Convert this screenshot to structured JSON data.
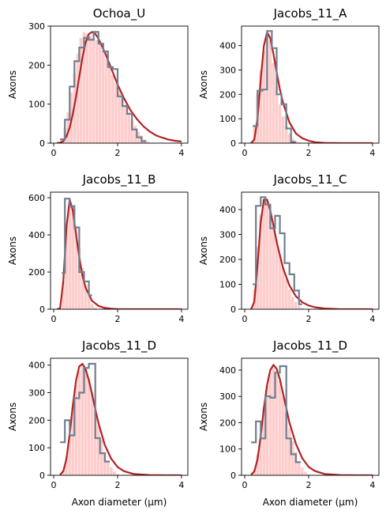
{
  "colors": {
    "fill": "#ffcccc",
    "fill_edge": "#ffffff",
    "fit": "#b22222",
    "step": "#708090",
    "axis": "#000000"
  },
  "chart_data": [
    {
      "type": "area",
      "title": "Ochoa_U",
      "ylabel": "Axons",
      "xlabel": "",
      "xlim": [
        -0.1,
        4.2
      ],
      "ylim": [
        0,
        300
      ],
      "xticks": [
        0,
        2,
        4
      ],
      "yticks": [
        0,
        100,
        200,
        300
      ],
      "grid": false,
      "series": [
        {
          "kind": "fill",
          "x": [
            0.25,
            0.35,
            0.45,
            0.55,
            0.65,
            0.75,
            0.85,
            0.95,
            1.05,
            1.15,
            1.25,
            1.35,
            1.45,
            1.55,
            1.65,
            1.75,
            1.85,
            1.95,
            2.05,
            2.15,
            2.25,
            2.35,
            2.45,
            2.55,
            2.65,
            2.75,
            2.85,
            2.95
          ],
          "values": [
            8,
            40,
            80,
            130,
            180,
            230,
            270,
            285,
            280,
            275,
            270,
            265,
            255,
            235,
            215,
            195,
            175,
            155,
            135,
            120,
            100,
            80,
            60,
            45,
            30,
            20,
            10,
            5
          ]
        },
        {
          "kind": "fit",
          "x": [
            0.1,
            0.2,
            0.3,
            0.4,
            0.5,
            0.6,
            0.7,
            0.8,
            0.9,
            1.0,
            1.1,
            1.2,
            1.3,
            1.4,
            1.6,
            1.8,
            2.0,
            2.2,
            2.4,
            2.6,
            2.8,
            3.0,
            3.2,
            3.4,
            3.6,
            3.8,
            4.0
          ],
          "values": [
            0,
            1,
            5,
            17,
            40,
            75,
            120,
            170,
            220,
            258,
            280,
            285,
            280,
            268,
            233,
            192,
            150,
            115,
            85,
            62,
            44,
            30,
            20,
            14,
            9,
            6,
            4
          ]
        },
        {
          "kind": "step",
          "edges": [
            0.2,
            0.35,
            0.5,
            0.65,
            0.8,
            0.95,
            1.1,
            1.25,
            1.4,
            1.55,
            1.7,
            1.85,
            2.0,
            2.15,
            2.3,
            2.45,
            2.6,
            2.75,
            2.9
          ],
          "values": [
            10,
            60,
            145,
            210,
            245,
            270,
            265,
            285,
            255,
            235,
            195,
            190,
            120,
            95,
            75,
            35,
            15,
            5
          ]
        }
      ]
    },
    {
      "type": "area",
      "title": "Jacobs_11_A",
      "ylabel": "Axons",
      "xlabel": "",
      "xlim": [
        -0.1,
        4.2
      ],
      "ylim": [
        0,
        480
      ],
      "xticks": [
        0,
        2,
        4
      ],
      "yticks": [
        0,
        100,
        200,
        300,
        400
      ],
      "grid": false,
      "series": [
        {
          "kind": "fill",
          "x": [
            0.3,
            0.4,
            0.5,
            0.6,
            0.7,
            0.8,
            0.9,
            1.0,
            1.1,
            1.2,
            1.3,
            1.4,
            1.5,
            1.6,
            1.7
          ],
          "values": [
            70,
            200,
            300,
            380,
            440,
            420,
            330,
            230,
            160,
            110,
            70,
            40,
            20,
            10,
            5
          ]
        },
        {
          "kind": "fit",
          "x": [
            0.2,
            0.3,
            0.4,
            0.5,
            0.6,
            0.7,
            0.8,
            0.9,
            1.0,
            1.1,
            1.2,
            1.4,
            1.6,
            1.8,
            2.0,
            2.2,
            2.5,
            3.0,
            3.5,
            4.0
          ],
          "values": [
            0,
            15,
            100,
            260,
            400,
            455,
            430,
            365,
            290,
            220,
            165,
            85,
            40,
            20,
            10,
            4,
            1,
            0,
            0,
            0
          ]
        },
        {
          "kind": "step",
          "edges": [
            0.25,
            0.4,
            0.55,
            0.7,
            0.85,
            1.0,
            1.15,
            1.3,
            1.45,
            1.6
          ],
          "values": [
            70,
            215,
            220,
            460,
            390,
            200,
            160,
            60,
            5
          ]
        }
      ]
    },
    {
      "type": "area",
      "title": "Jacobs_11_B",
      "ylabel": "Axons",
      "xlabel": "",
      "xlim": [
        -0.1,
        4.2
      ],
      "ylim": [
        0,
        630
      ],
      "xticks": [
        0,
        2,
        4
      ],
      "yticks": [
        0,
        200,
        400,
        600
      ],
      "grid": false,
      "series": [
        {
          "kind": "fill",
          "x": [
            0.3,
            0.4,
            0.5,
            0.6,
            0.7,
            0.8,
            0.9,
            1.0,
            1.1,
            1.2,
            1.3
          ],
          "values": [
            150,
            450,
            580,
            550,
            450,
            330,
            220,
            130,
            70,
            30,
            10
          ]
        },
        {
          "kind": "fit",
          "x": [
            0.1,
            0.2,
            0.3,
            0.4,
            0.5,
            0.6,
            0.7,
            0.8,
            0.9,
            1.0,
            1.2,
            1.4,
            1.6,
            1.8,
            2.0,
            2.5,
            3.0,
            4.0
          ],
          "values": [
            0,
            5,
            150,
            440,
            590,
            530,
            400,
            280,
            180,
            115,
            45,
            18,
            7,
            3,
            1,
            0,
            0,
            0
          ]
        },
        {
          "kind": "step",
          "edges": [
            0.25,
            0.35,
            0.5,
            0.65,
            0.8,
            0.95,
            1.1,
            1.2
          ],
          "values": [
            195,
            595,
            555,
            440,
            200,
            150,
            75
          ]
        }
      ]
    },
    {
      "type": "area",
      "title": "Jacobs_11_C",
      "ylabel": "Axons",
      "xlabel": "",
      "xlim": [
        -0.1,
        4.2
      ],
      "ylim": [
        0,
        470
      ],
      "xticks": [
        0,
        2,
        4
      ],
      "yticks": [
        0,
        100,
        200,
        300,
        400
      ],
      "grid": false,
      "series": [
        {
          "kind": "fill",
          "x": [
            0.3,
            0.4,
            0.5,
            0.6,
            0.7,
            0.8,
            0.9,
            1.0,
            1.1,
            1.2,
            1.3,
            1.4,
            1.5,
            1.6,
            1.7,
            1.8
          ],
          "values": [
            80,
            250,
            380,
            440,
            430,
            400,
            340,
            280,
            220,
            170,
            120,
            80,
            50,
            30,
            15,
            5
          ]
        },
        {
          "kind": "fit",
          "x": [
            0.2,
            0.3,
            0.4,
            0.5,
            0.6,
            0.7,
            0.8,
            0.9,
            1.0,
            1.2,
            1.4,
            1.6,
            1.8,
            2.0,
            2.2,
            2.5,
            3.0,
            3.5,
            4.0
          ],
          "values": [
            0,
            30,
            175,
            350,
            440,
            440,
            395,
            335,
            270,
            165,
            95,
            52,
            28,
            15,
            8,
            3,
            0,
            0,
            0
          ]
        },
        {
          "kind": "step",
          "edges": [
            0.25,
            0.35,
            0.5,
            0.65,
            0.8,
            0.95,
            1.1,
            1.25,
            1.4,
            1.55,
            1.7,
            1.8
          ],
          "values": [
            100,
            415,
            450,
            420,
            325,
            375,
            305,
            185,
            140,
            75,
            20
          ]
        }
      ]
    },
    {
      "type": "area",
      "title": "Jacobs_11_D",
      "ylabel": "Axons",
      "xlabel": "Axon diameter (µm)",
      "xlim": [
        -0.1,
        4.2
      ],
      "ylim": [
        0,
        425
      ],
      "xticks": [
        0,
        2,
        4
      ],
      "yticks": [
        0,
        100,
        200,
        300,
        400
      ],
      "grid": false,
      "series": [
        {
          "kind": "fill",
          "x": [
            0.3,
            0.4,
            0.5,
            0.6,
            0.7,
            0.8,
            0.9,
            1.0,
            1.1,
            1.2,
            1.3,
            1.4,
            1.5,
            1.6,
            1.7,
            1.8,
            1.9,
            2.0
          ],
          "values": [
            20,
            70,
            150,
            250,
            330,
            380,
            400,
            390,
            350,
            300,
            240,
            180,
            130,
            85,
            55,
            30,
            15,
            5
          ]
        },
        {
          "kind": "fit",
          "x": [
            0.2,
            0.3,
            0.4,
            0.5,
            0.6,
            0.7,
            0.8,
            0.9,
            1.0,
            1.1,
            1.2,
            1.3,
            1.4,
            1.6,
            1.8,
            2.0,
            2.2,
            2.5,
            3.0,
            3.5,
            4.0
          ],
          "values": [
            2,
            15,
            60,
            150,
            255,
            345,
            395,
            405,
            385,
            345,
            295,
            240,
            190,
            110,
            60,
            30,
            15,
            5,
            1,
            0,
            0
          ]
        },
        {
          "kind": "step",
          "edges": [
            0.2,
            0.35,
            0.5,
            0.65,
            0.8,
            0.95,
            1.1,
            1.3,
            1.45,
            1.6,
            1.75
          ],
          "values": [
            120,
            200,
            145,
            280,
            300,
            390,
            405,
            135,
            80,
            50
          ]
        }
      ]
    },
    {
      "type": "area",
      "title": "Jacobs_11_D",
      "ylabel": "Axons",
      "xlabel": "Axon diameter (µm)",
      "xlim": [
        -0.1,
        4.2
      ],
      "ylim": [
        0,
        445
      ],
      "xticks": [
        0,
        2,
        4
      ],
      "yticks": [
        0,
        100,
        200,
        300,
        400
      ],
      "grid": false,
      "series": [
        {
          "kind": "fill",
          "x": [
            0.3,
            0.4,
            0.5,
            0.6,
            0.7,
            0.8,
            0.9,
            1.0,
            1.1,
            1.2,
            1.3,
            1.4,
            1.5,
            1.6,
            1.7,
            1.8,
            1.9,
            2.0
          ],
          "values": [
            25,
            80,
            160,
            260,
            340,
            390,
            410,
            400,
            360,
            300,
            240,
            180,
            130,
            90,
            55,
            30,
            15,
            5
          ]
        },
        {
          "kind": "fit",
          "x": [
            0.2,
            0.3,
            0.4,
            0.5,
            0.6,
            0.7,
            0.8,
            0.9,
            1.0,
            1.1,
            1.2,
            1.3,
            1.4,
            1.6,
            1.8,
            2.0,
            2.2,
            2.5,
            3.0,
            3.5,
            4.0
          ],
          "values": [
            2,
            15,
            60,
            150,
            255,
            345,
            400,
            420,
            405,
            365,
            310,
            255,
            200,
            120,
            65,
            32,
            16,
            5,
            1,
            0,
            0
          ]
        },
        {
          "kind": "step",
          "edges": [
            0.2,
            0.35,
            0.5,
            0.65,
            0.8,
            0.95,
            1.1,
            1.3,
            1.45,
            1.6,
            1.75
          ],
          "values": [
            125,
            205,
            140,
            300,
            295,
            390,
            415,
            140,
            80,
            50
          ]
        }
      ]
    }
  ]
}
